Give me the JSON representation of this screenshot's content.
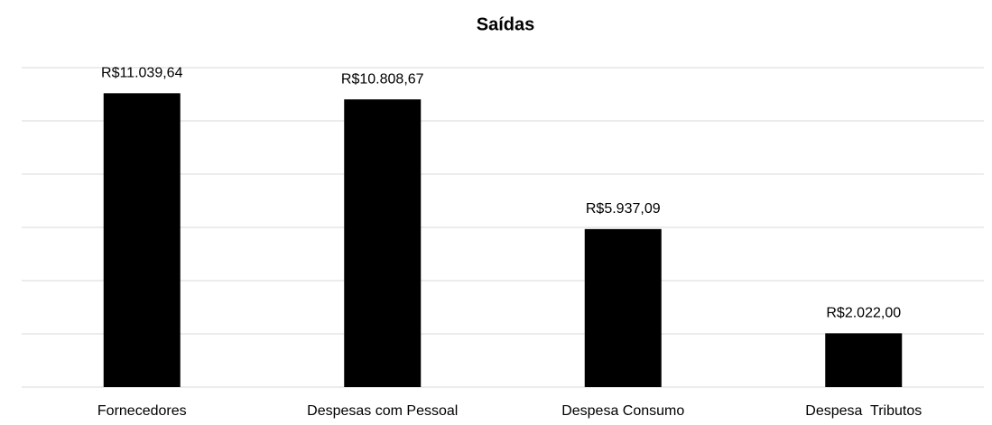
{
  "chart_data": {
    "type": "bar",
    "title": "Saídas",
    "categories": [
      "Fornecedores",
      "Despesas com Pessoal",
      "Despesa Consumo",
      "Despesa  Tributos"
    ],
    "values": [
      11039.64,
      10808.67,
      5937.09,
      2022.0
    ],
    "value_labels": [
      "R$11.039,64",
      "R$10.808,67",
      "R$5.937,09",
      "R$2.022,00"
    ],
    "color": "#000000",
    "ylim": [
      0,
      12000
    ],
    "yticks": [
      0,
      2000,
      4000,
      6000,
      8000,
      10000,
      12000
    ],
    "grid": true
  }
}
